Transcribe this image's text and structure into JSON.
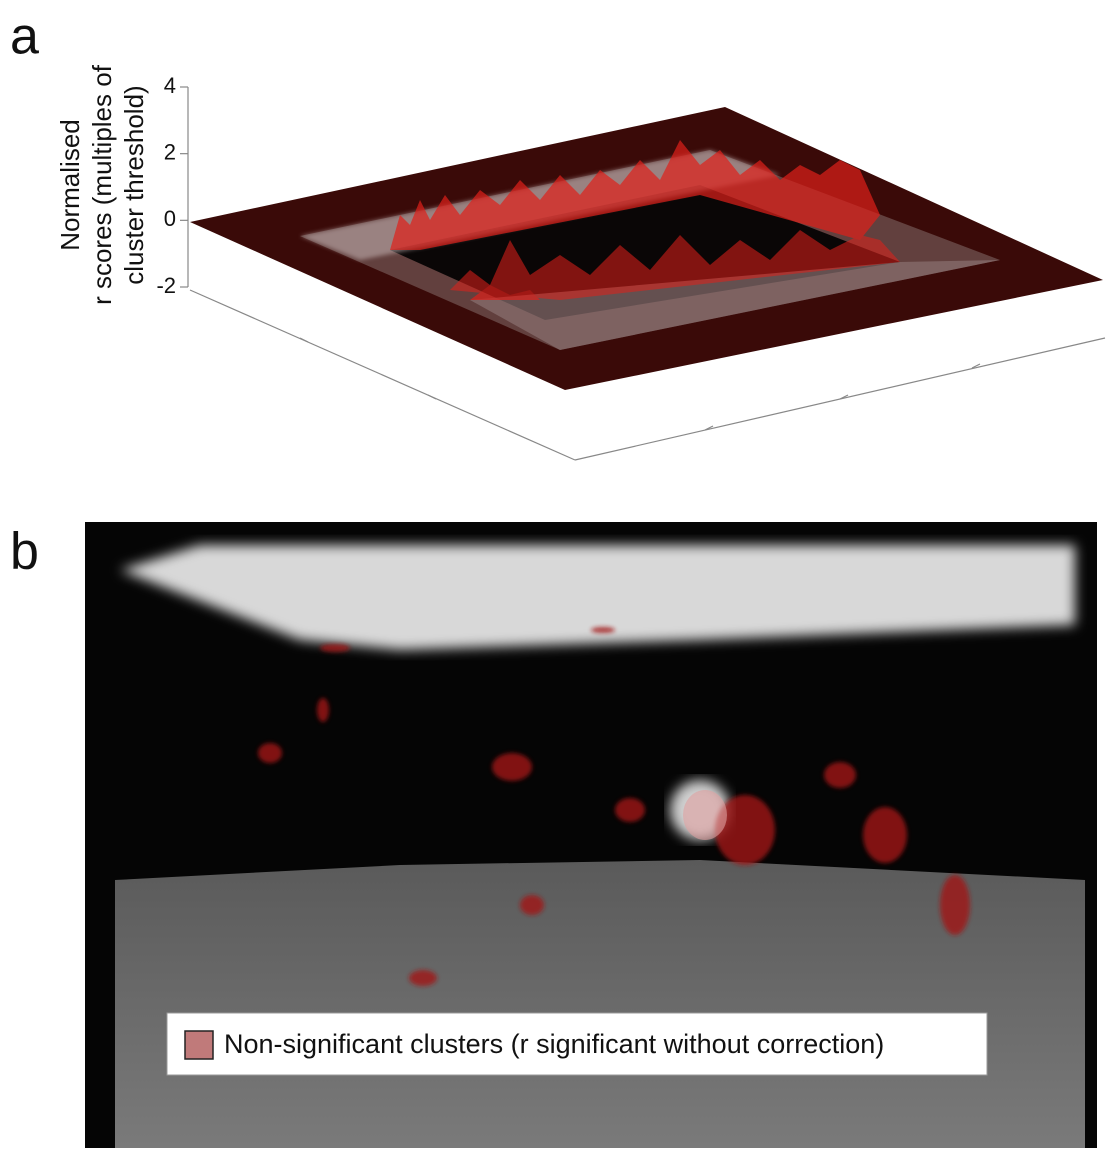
{
  "panel_labels": [
    "a",
    "b"
  ],
  "chart_data": {
    "type": "surface3d",
    "zlabel": [
      "Normalised",
      "r scores (multiples of",
      "cluster threshold)"
    ],
    "zlim": [
      -2,
      4
    ],
    "zticks": [
      -2,
      0,
      2,
      4
    ],
    "color": "#e0201a"
  },
  "legend": {
    "label": "Non-significant clusters (r significant without correction)",
    "color": "#c07a7a"
  }
}
